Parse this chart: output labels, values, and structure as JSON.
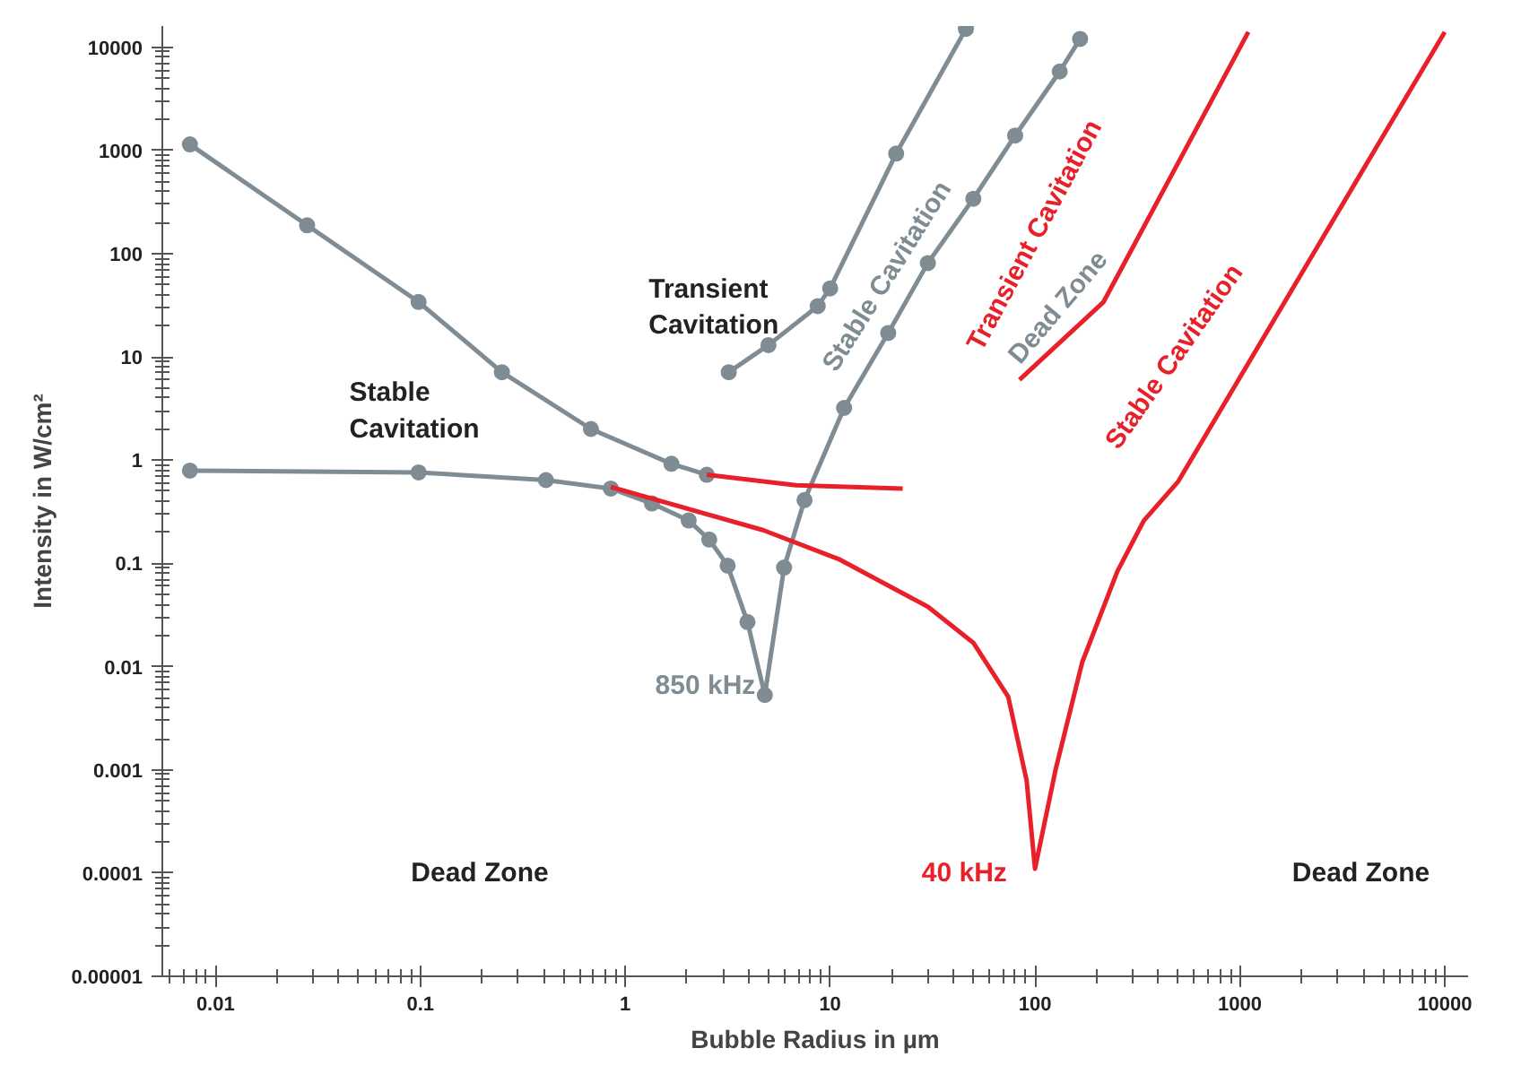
{
  "chart_data": {
    "type": "line",
    "xlabel": "Bubble Radius in µm",
    "ylabel": "Intensity in W/cm²",
    "log": "xy",
    "grid": false,
    "marker": "none",
    "line_style": "solid",
    "xlim": [
      0.0055,
      13000
    ],
    "ylim": [
      1e-05,
      16000
    ],
    "xticks": [
      {
        "value": 0.01,
        "label": "0.01"
      },
      {
        "value": 0.1,
        "label": "0.1"
      },
      1,
      10,
      100,
      1000,
      10000
    ],
    "yticks": [
      {
        "value": 1e-05,
        "label": "0.00001"
      },
      {
        "value": 0.0001,
        "label": "0.0001"
      },
      {
        "value": 0.001,
        "label": "0.001"
      },
      {
        "value": 0.01,
        "label": "0.01"
      },
      {
        "value": 0.1,
        "label": "0.1"
      },
      1,
      10,
      100,
      1000,
      10000
    ],
    "series": [
      {
        "color": "#7f8c93",
        "marker": "circle",
        "x": [
          0.0075,
          0.028,
          0.098,
          0.25,
          0.68,
          1.68,
          2.5
        ],
        "values": [
          1140,
          188,
          34,
          7.1,
          2.0,
          0.92,
          0.72
        ]
      },
      {
        "color": "#7f8c93",
        "marker": "circle",
        "x": [
          0.0075,
          0.098,
          0.41,
          0.85,
          1.35,
          2.04,
          2.57,
          3.16,
          3.95,
          4.8,
          5.96,
          7.5,
          11.7,
          19.2,
          30,
          50,
          80,
          132,
          166
        ],
        "values": [
          0.79,
          0.76,
          0.64,
          0.53,
          0.38,
          0.26,
          0.17,
          0.095,
          0.027,
          0.0053,
          0.091,
          0.41,
          3.2,
          17,
          81,
          340,
          1390,
          5800,
          12000
        ]
      },
      {
        "color": "#7f8c93",
        "marker": "circle",
        "x": [
          3.2,
          5,
          8.7,
          10,
          21,
          46
        ],
        "values": [
          7.1,
          13,
          31,
          46,
          930,
          15000
        ]
      },
      {
        "color": "#e8202a",
        "x": [
          2.5,
          6.8,
          22.6
        ],
        "values": [
          0.72,
          0.57,
          0.53
        ]
      },
      {
        "color": "#e8202a",
        "x": [
          0.85,
          4.7,
          11,
          30,
          50,
          74,
          91,
          100,
          126,
          170,
          252,
          340,
          500,
          10000
        ],
        "values": [
          0.55,
          0.21,
          0.11,
          0.038,
          0.017,
          0.0051,
          0.00079,
          0.00011,
          0.001,
          0.011,
          0.083,
          0.26,
          0.62,
          14000
        ]
      },
      {
        "color": "#e8202a",
        "x": [
          84,
          216,
          1100
        ],
        "values": [
          6.0,
          34,
          14000
        ]
      }
    ],
    "annotations": [
      "Transient\nCavitation",
      "Stable\nCavitation",
      "Dead Zone",
      "850 kHz",
      "40 kHz",
      "Dead Zone",
      "Stable Cavitation",
      "Transient Cavitation",
      "Dead Zone",
      "Stable Cavitation"
    ]
  }
}
